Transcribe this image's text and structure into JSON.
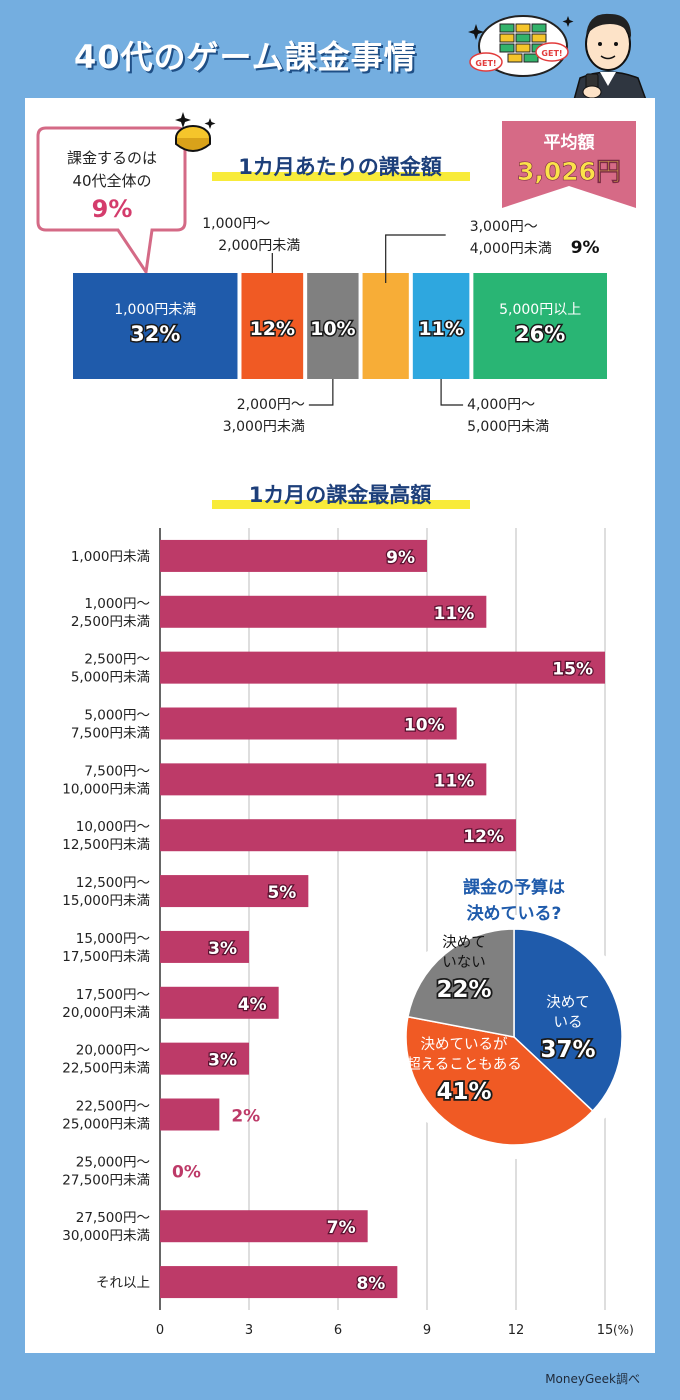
{
  "header": {
    "title": "40代のゲーム課金事情",
    "badge_left": "GET!",
    "badge_right": "GET!"
  },
  "callout": {
    "line1": "課金するのは",
    "line2": "40代全体の",
    "value": "9%"
  },
  "average": {
    "label": "平均額",
    "value": "3,026円"
  },
  "credit": "MoneyGeek調べ",
  "colors": {
    "background": "#74aee0",
    "bar": "#bd3a68",
    "blue": "#1f5bab",
    "orange": "#f05a24",
    "gray": "#808080",
    "yellow": "#f7ad37",
    "sky": "#2ea7df",
    "green": "#29b574",
    "highlight": "#f8eb3a",
    "callout_border": "#d46a86",
    "average_bg": "#d66a86"
  },
  "chart_data": [
    {
      "type": "bar",
      "orientation": "stacked-horizontal",
      "title": "1カ月あたりの課金額",
      "unit": "%",
      "segments": [
        {
          "name": "1,000円未満",
          "value": 32,
          "label": "32%",
          "color": "#1f5bab",
          "name_line1": "1,000円未満",
          "name_line2": "",
          "label_pos": "inside"
        },
        {
          "name": "1,000円～2,000円未満",
          "value": 12,
          "label": "12%",
          "color": "#f05a24",
          "name_line1": "1,000円～",
          "name_line2": "2,000円未満",
          "label_pos": "above"
        },
        {
          "name": "2,000円～3,000円未満",
          "value": 10,
          "label": "10%",
          "color": "#808080",
          "name_line1": "2,000円～",
          "name_line2": "3,000円未満",
          "label_pos": "below"
        },
        {
          "name": "3,000円～4,000円未満",
          "value": 9,
          "label": "9%",
          "color": "#f7ad37",
          "name_line1": "3,000円～",
          "name_line2": "4,000円未満",
          "label_pos": "above"
        },
        {
          "name": "4,000円～5,000円未満",
          "value": 11,
          "label": "11%",
          "color": "#2ea7df",
          "name_line1": "4,000円～",
          "name_line2": "5,000円未満",
          "label_pos": "below"
        },
        {
          "name": "5,000円以上",
          "value": 26,
          "label": "26%",
          "color": "#29b574",
          "name_line1": "5,000円以上",
          "name_line2": "",
          "label_pos": "inside"
        }
      ]
    },
    {
      "type": "bar",
      "orientation": "horizontal",
      "title": "1カ月の課金最高額",
      "unit": "%",
      "xlim": [
        0,
        15
      ],
      "xticks": [
        "0",
        "3",
        "6",
        "9",
        "12",
        "15"
      ],
      "xtick_values": [
        0,
        3,
        6,
        9,
        12,
        15
      ],
      "x_unit_label": "(%)",
      "grid": true,
      "categories": [
        {
          "line1": "1,000円未満",
          "line2": ""
        },
        {
          "line1": "1,000円～",
          "line2": "2,500円未満"
        },
        {
          "line1": "2,500円～",
          "line2": "5,000円未満"
        },
        {
          "line1": "5,000円～",
          "line2": "7,500円未満"
        },
        {
          "line1": "7,500円～",
          "line2": "10,000円未満"
        },
        {
          "line1": "10,000円～",
          "line2": "12,500円未満"
        },
        {
          "line1": "12,500円～",
          "line2": "15,000円未満"
        },
        {
          "line1": "15,000円～",
          "line2": "17,500円未満"
        },
        {
          "line1": "17,500円～",
          "line2": "20,000円未満"
        },
        {
          "line1": "20,000円～",
          "line2": "22,500円未満"
        },
        {
          "line1": "22,500円～",
          "line2": "25,000円未満"
        },
        {
          "line1": "25,000円～",
          "line2": "27,500円未満"
        },
        {
          "line1": "27,500円～",
          "line2": "30,000円未満"
        },
        {
          "line1": "それ以上",
          "line2": ""
        }
      ],
      "values": [
        9,
        11,
        15,
        10,
        11,
        12,
        5,
        3,
        4,
        3,
        2,
        0,
        7,
        8
      ],
      "labels": [
        "9%",
        "11%",
        "15%",
        "10%",
        "11%",
        "12%",
        "5%",
        "3%",
        "4%",
        "3%",
        "2%",
        "0%",
        "7%",
        "8%"
      ]
    },
    {
      "type": "pie",
      "title_line1": "課金の予算は",
      "title_line2": "決めている?",
      "slices": [
        {
          "name": "決めている",
          "name_line1": "決めて",
          "name_line2": "いる",
          "value": 37,
          "label": "37%",
          "color": "#1f5bab"
        },
        {
          "name": "決めているが超えることもある",
          "name_line1": "決めているが",
          "name_line2": "超えることもある",
          "value": 41,
          "label": "41%",
          "color": "#f05a24"
        },
        {
          "name": "決めていない",
          "name_line1": "決めて",
          "name_line2": "いない",
          "value": 22,
          "label": "22%",
          "color": "#808080"
        }
      ]
    }
  ]
}
